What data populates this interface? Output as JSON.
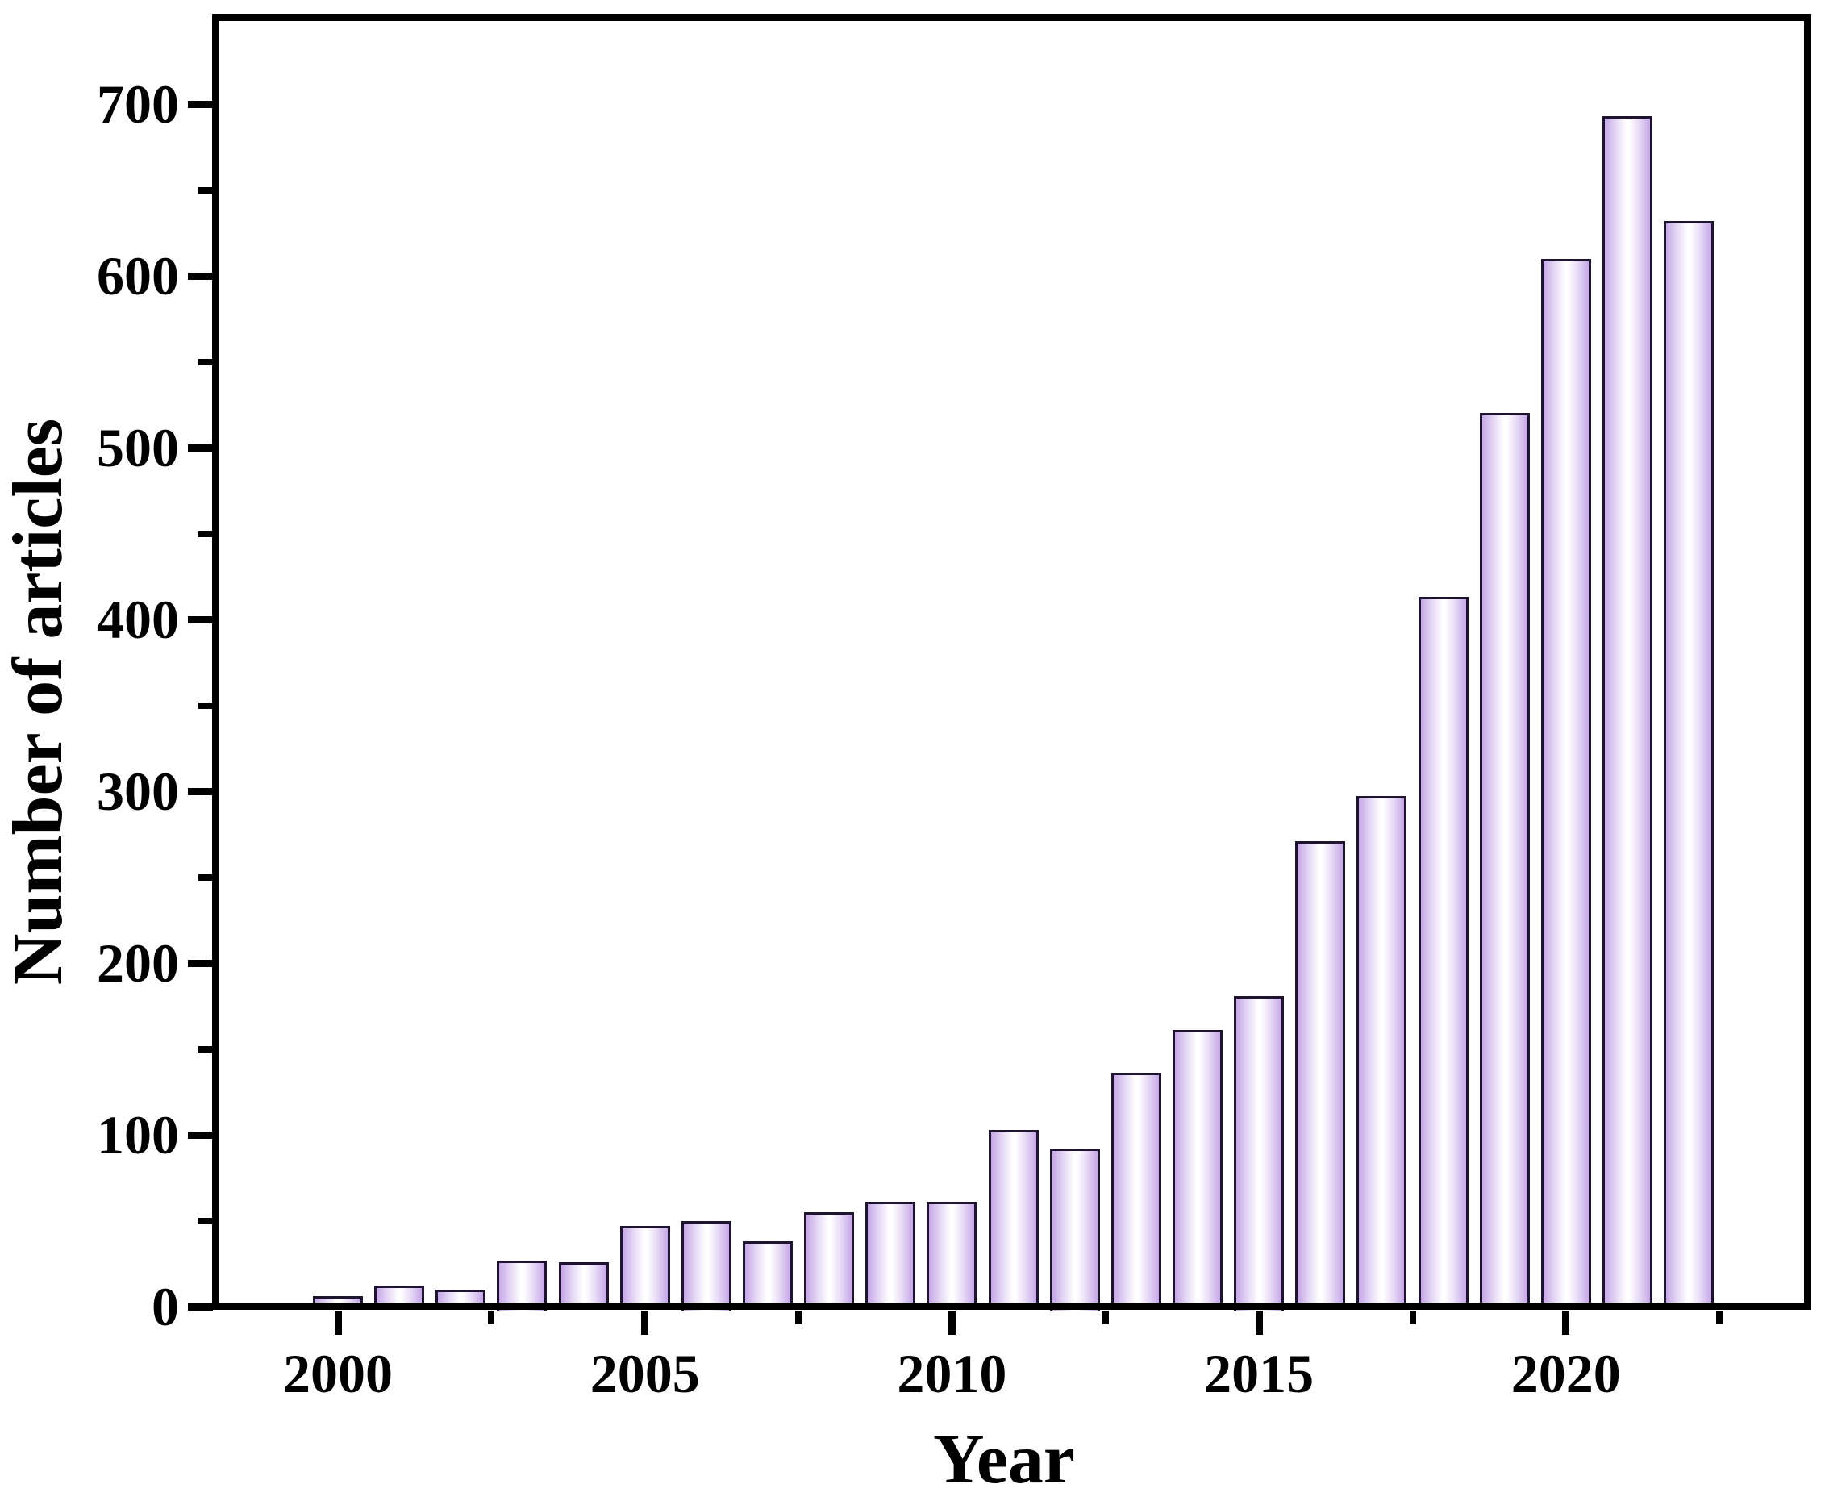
{
  "chart_data": {
    "type": "bar",
    "title": "",
    "xlabel": "Year",
    "ylabel": "Number of articles",
    "categories": [
      2000,
      2001,
      2002,
      2003,
      2004,
      2005,
      2006,
      2007,
      2008,
      2009,
      2010,
      2011,
      2012,
      2013,
      2014,
      2015,
      2016,
      2017,
      2018,
      2019,
      2020,
      2021,
      2022
    ],
    "values": [
      6,
      12,
      10,
      27,
      26,
      47,
      50,
      38,
      55,
      61,
      61,
      103,
      92,
      136,
      161,
      181,
      271,
      297,
      413,
      520,
      610,
      693,
      632
    ],
    "x_ticks": [
      2000,
      2005,
      2010,
      2015,
      2020
    ],
    "x_tick_labels": [
      "2000",
      "2005",
      "2010",
      "2015",
      "2020"
    ],
    "x_minor_ticks": [
      2002.5,
      2007.5,
      2012.5,
      2017.5,
      2022.5
    ],
    "y_ticks": [
      0,
      100,
      200,
      300,
      400,
      500,
      600,
      700
    ],
    "y_tick_labels": [
      "0",
      "100",
      "200",
      "300",
      "400",
      "500",
      "600",
      "700"
    ],
    "y_minor_ticks": [
      50,
      150,
      250,
      350,
      450,
      550,
      650
    ],
    "xlim": [
      1998,
      2024
    ],
    "ylim": [
      0,
      750
    ],
    "grid": false,
    "legend": null,
    "colors": {
      "bar_edge_fill": "#c6a7e7",
      "bar_center_fill": "#ffffff",
      "bar_border": "#1f1430",
      "axis": "#000000",
      "text": "#000000",
      "background": "#ffffff"
    }
  }
}
